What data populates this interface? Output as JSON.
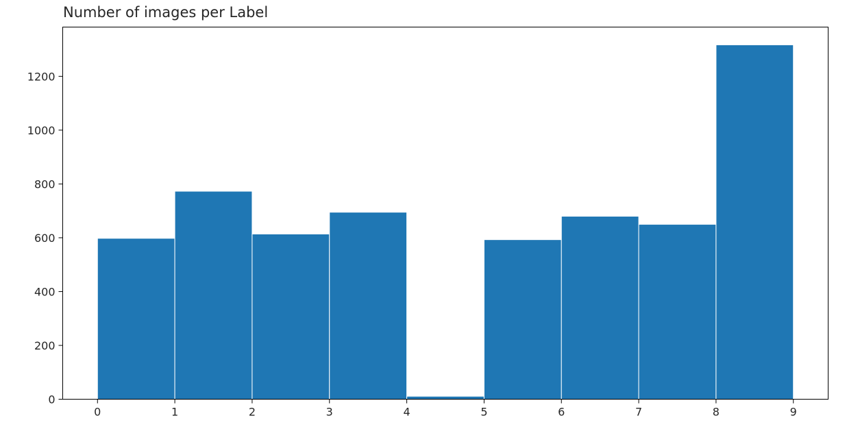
{
  "chart_data": {
    "type": "bar",
    "title": "Number of images per Label",
    "xlabel": "",
    "ylabel": "",
    "bin_edges": [
      0,
      1,
      2,
      3,
      4,
      5,
      6,
      7,
      8,
      9
    ],
    "values": [
      598,
      773,
      614,
      695,
      11,
      593,
      680,
      650,
      1317
    ],
    "xlim": [
      -0.45,
      9.45
    ],
    "ylim": [
      0,
      1383
    ],
    "x_ticks": [
      "0",
      "1",
      "2",
      "3",
      "4",
      "5",
      "6",
      "7",
      "8",
      "9"
    ],
    "y_ticks": [
      "0",
      "200",
      "400",
      "600",
      "800",
      "1000",
      "1200"
    ],
    "grid": false,
    "legend": "none",
    "bar_color": "#1f77b4",
    "bar_edge_color": "#ffffff"
  }
}
